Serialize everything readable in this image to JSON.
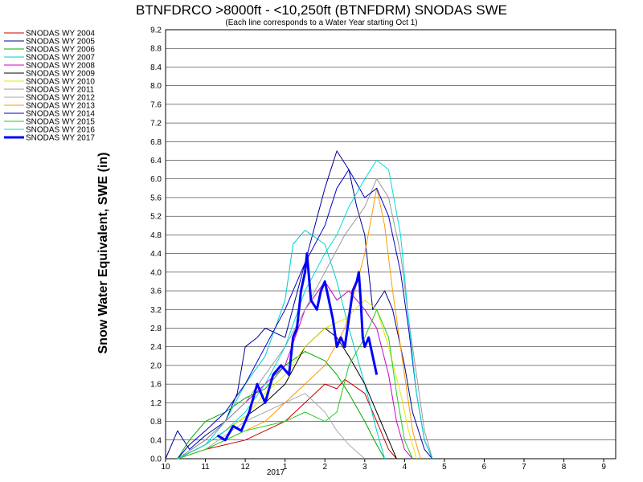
{
  "chart_data": {
    "type": "line",
    "title": "BTNFDRCO >8000ft - <10,250ft (BTNFDRM) SNODAS SWE",
    "subtitle": "(Each line corresponds to a Water Year starting Oct 1)",
    "ylabel": "Snow Water Equivalent, SWE (in)",
    "xlabel": "",
    "x_ticks": [
      "10",
      "11",
      "12",
      "1",
      "2",
      "3",
      "4",
      "5",
      "6",
      "7",
      "8",
      "9"
    ],
    "x_year_label": "2017",
    "x_month_index_range": [
      0,
      11.3
    ],
    "y_ticks": [
      "0.0",
      "0.4",
      "0.8",
      "1.2",
      "1.6",
      "2.0",
      "2.4",
      "2.8",
      "3.2",
      "3.6",
      "4.0",
      "4.4",
      "4.8",
      "5.2",
      "5.6",
      "6.0",
      "6.4",
      "6.8",
      "7.2",
      "7.6",
      "8.0",
      "8.4",
      "8.8",
      "9.2"
    ],
    "ylim": [
      0,
      9.2
    ],
    "grid": true,
    "legend_position": "top-left outside",
    "series": [
      {
        "name": "SNODAS WY 2004",
        "color": "#cc0000",
        "width": 1,
        "points": [
          [
            0.3,
            0
          ],
          [
            1,
            0.2
          ],
          [
            1.5,
            0.3
          ],
          [
            2,
            0.4
          ],
          [
            2.5,
            0.6
          ],
          [
            3,
            0.8
          ],
          [
            3.5,
            1.2
          ],
          [
            4,
            1.6
          ],
          [
            4.3,
            1.5
          ],
          [
            4.5,
            1.7
          ],
          [
            5,
            1.4
          ],
          [
            5.3,
            0.8
          ],
          [
            5.6,
            0.2
          ],
          [
            5.8,
            0
          ]
        ]
      },
      {
        "name": "SNODAS WY 2005",
        "color": "#000099",
        "width": 1,
        "points": [
          [
            0,
            0
          ],
          [
            0.3,
            0.6
          ],
          [
            0.6,
            0.2
          ],
          [
            1,
            0.5
          ],
          [
            1.5,
            0.8
          ],
          [
            1.8,
            1.4
          ],
          [
            2,
            2.4
          ],
          [
            2.3,
            2.6
          ],
          [
            2.5,
            2.8
          ],
          [
            3,
            2.6
          ],
          [
            3.5,
            4.2
          ],
          [
            4,
            5.8
          ],
          [
            4.3,
            6.6
          ],
          [
            4.6,
            6.2
          ],
          [
            4.8,
            5.4
          ],
          [
            5,
            4.8
          ],
          [
            5.2,
            3.2
          ],
          [
            5.5,
            3.6
          ],
          [
            5.7,
            3.2
          ],
          [
            6,
            2
          ],
          [
            6.2,
            1
          ],
          [
            6.5,
            0.2
          ],
          [
            6.7,
            0
          ]
        ]
      },
      {
        "name": "SNODAS WY 2006",
        "color": "#00aa00",
        "width": 1,
        "points": [
          [
            0.3,
            0
          ],
          [
            0.6,
            0.4
          ],
          [
            1,
            0.8
          ],
          [
            1.5,
            1.0
          ],
          [
            2,
            1.3
          ],
          [
            2.5,
            1.5
          ],
          [
            3,
            2.0
          ],
          [
            3.5,
            2.3
          ],
          [
            4,
            2.1
          ],
          [
            4.3,
            1.8
          ],
          [
            4.6,
            1.4
          ],
          [
            5,
            0.8
          ],
          [
            5.3,
            0.3
          ],
          [
            5.5,
            0
          ]
        ]
      },
      {
        "name": "SNODAS WY 2007",
        "color": "#00cccc",
        "width": 1,
        "points": [
          [
            0.3,
            0
          ],
          [
            1,
            0.3
          ],
          [
            1.5,
            0.8
          ],
          [
            2,
            1.6
          ],
          [
            2.5,
            2.2
          ],
          [
            3,
            3.4
          ],
          [
            3.2,
            4.6
          ],
          [
            3.5,
            4.9
          ],
          [
            4,
            4.6
          ],
          [
            4.3,
            3.8
          ],
          [
            4.6,
            2.8
          ],
          [
            5,
            1.6
          ],
          [
            5.3,
            0.6
          ],
          [
            5.5,
            0
          ]
        ]
      },
      {
        "name": "SNODAS WY 2008",
        "color": "#cc00cc",
        "width": 1,
        "points": [
          [
            0.3,
            0
          ],
          [
            1,
            0.4
          ],
          [
            1.5,
            0.8
          ],
          [
            2,
            1.2
          ],
          [
            2.5,
            1.6
          ],
          [
            3,
            2.0
          ],
          [
            3.5,
            3.2
          ],
          [
            4,
            3.8
          ],
          [
            4.3,
            3.4
          ],
          [
            4.6,
            3.6
          ],
          [
            5,
            3.2
          ],
          [
            5.3,
            2.8
          ],
          [
            5.6,
            1.8
          ],
          [
            5.8,
            0.8
          ],
          [
            6,
            0.2
          ],
          [
            6.2,
            0
          ]
        ]
      },
      {
        "name": "SNODAS WY 2009",
        "color": "#000000",
        "width": 1,
        "points": [
          [
            0.3,
            0
          ],
          [
            1,
            0.3
          ],
          [
            1.5,
            0.6
          ],
          [
            2,
            0.9
          ],
          [
            2.5,
            1.2
          ],
          [
            3,
            1.6
          ],
          [
            3.5,
            2.4
          ],
          [
            4,
            2.8
          ],
          [
            4.3,
            2.6
          ],
          [
            4.6,
            2.2
          ],
          [
            5,
            1.6
          ],
          [
            5.3,
            1.0
          ],
          [
            5.6,
            0.4
          ],
          [
            5.8,
            0
          ]
        ]
      },
      {
        "name": "SNODAS WY 2010",
        "color": "#e6e600",
        "width": 1,
        "points": [
          [
            0.3,
            0
          ],
          [
            1,
            0.3
          ],
          [
            1.5,
            0.6
          ],
          [
            2,
            0.9
          ],
          [
            2.5,
            1.4
          ],
          [
            3,
            1.8
          ],
          [
            3.5,
            2.4
          ],
          [
            4,
            2.8
          ],
          [
            4.5,
            3.0
          ],
          [
            5,
            3.4
          ],
          [
            5.3,
            3.2
          ],
          [
            5.6,
            2.4
          ],
          [
            5.9,
            1.4
          ],
          [
            6.1,
            0.6
          ],
          [
            6.3,
            0
          ]
        ]
      },
      {
        "name": "SNODAS WY 2011",
        "color": "#999999",
        "width": 1,
        "points": [
          [
            0.3,
            0
          ],
          [
            1,
            0.4
          ],
          [
            1.5,
            0.8
          ],
          [
            2,
            1.2
          ],
          [
            2.5,
            1.8
          ],
          [
            3,
            2.4
          ],
          [
            3.5,
            3.2
          ],
          [
            4,
            4.0
          ],
          [
            4.5,
            4.8
          ],
          [
            5,
            5.4
          ],
          [
            5.3,
            6.0
          ],
          [
            5.6,
            5.6
          ],
          [
            5.9,
            4.4
          ],
          [
            6.1,
            3.0
          ],
          [
            6.3,
            1.8
          ],
          [
            6.5,
            0.6
          ],
          [
            6.7,
            0
          ]
        ]
      },
      {
        "name": "SNODAS WY 2012",
        "color": "#aaaaaa",
        "width": 1,
        "points": [
          [
            0.3,
            0
          ],
          [
            1,
            0.2
          ],
          [
            1.5,
            0.5
          ],
          [
            2,
            0.8
          ],
          [
            2.5,
            1.0
          ],
          [
            3,
            1.2
          ],
          [
            3.5,
            1.4
          ],
          [
            4,
            1.0
          ],
          [
            4.3,
            0.6
          ],
          [
            4.6,
            0.3
          ],
          [
            5,
            0
          ]
        ]
      },
      {
        "name": "SNODAS WY 2013",
        "color": "#ff9900",
        "width": 1,
        "points": [
          [
            0.3,
            0
          ],
          [
            1,
            0.2
          ],
          [
            1.5,
            0.4
          ],
          [
            2,
            0.6
          ],
          [
            2.5,
            0.8
          ],
          [
            3,
            1.2
          ],
          [
            3.5,
            1.6
          ],
          [
            4,
            2.0
          ],
          [
            4.5,
            2.8
          ],
          [
            5,
            4.4
          ],
          [
            5.3,
            5.8
          ],
          [
            5.5,
            5.0
          ],
          [
            5.7,
            3.6
          ],
          [
            6,
            1.8
          ],
          [
            6.2,
            0.6
          ],
          [
            6.4,
            0
          ]
        ]
      },
      {
        "name": "SNODAS WY 2014",
        "color": "#0000cc",
        "width": 1,
        "points": [
          [
            0.3,
            0
          ],
          [
            0.6,
            0.3
          ],
          [
            1,
            0.6
          ],
          [
            1.5,
            1.0
          ],
          [
            2,
            1.6
          ],
          [
            2.5,
            2.4
          ],
          [
            3,
            3.2
          ],
          [
            3.5,
            4.2
          ],
          [
            4,
            5.0
          ],
          [
            4.3,
            5.8
          ],
          [
            4.6,
            6.2
          ],
          [
            5,
            5.6
          ],
          [
            5.3,
            5.8
          ],
          [
            5.6,
            5.2
          ],
          [
            5.9,
            4.0
          ],
          [
            6.1,
            2.8
          ],
          [
            6.3,
            1.4
          ],
          [
            6.5,
            0.4
          ],
          [
            6.7,
            0
          ]
        ]
      },
      {
        "name": "SNODAS WY 2015",
        "color": "#22cc22",
        "width": 1,
        "points": [
          [
            0.3,
            0
          ],
          [
            1,
            0.2
          ],
          [
            1.5,
            0.4
          ],
          [
            2,
            0.6
          ],
          [
            2.5,
            0.7
          ],
          [
            3,
            0.8
          ],
          [
            3.5,
            1.0
          ],
          [
            4,
            0.8
          ],
          [
            4.3,
            1.0
          ],
          [
            4.6,
            2.0
          ],
          [
            5,
            2.6
          ],
          [
            5.3,
            3.2
          ],
          [
            5.6,
            2.6
          ],
          [
            5.8,
            1.4
          ],
          [
            6,
            0.4
          ],
          [
            6.2,
            0
          ]
        ]
      },
      {
        "name": "SNODAS WY 2016",
        "color": "#00dddd",
        "width": 1,
        "points": [
          [
            0.3,
            0
          ],
          [
            1,
            0.3
          ],
          [
            1.5,
            0.6
          ],
          [
            2,
            1.0
          ],
          [
            2.5,
            1.6
          ],
          [
            3,
            2.4
          ],
          [
            3.5,
            3.6
          ],
          [
            4,
            4.4
          ],
          [
            4.3,
            4.8
          ],
          [
            4.6,
            5.4
          ],
          [
            5,
            6.0
          ],
          [
            5.3,
            6.4
          ],
          [
            5.6,
            6.2
          ],
          [
            5.9,
            4.8
          ],
          [
            6.1,
            3.0
          ],
          [
            6.3,
            1.4
          ],
          [
            6.5,
            0.4
          ],
          [
            6.7,
            0
          ]
        ]
      },
      {
        "name": "SNODAS WY 2017",
        "color": "#0000ff",
        "width": 3,
        "points": [
          [
            1.3,
            0.5
          ],
          [
            1.5,
            0.4
          ],
          [
            1.7,
            0.7
          ],
          [
            1.9,
            0.6
          ],
          [
            2.1,
            1.0
          ],
          [
            2.3,
            1.6
          ],
          [
            2.5,
            1.2
          ],
          [
            2.7,
            1.8
          ],
          [
            2.9,
            2.0
          ],
          [
            3.1,
            1.8
          ],
          [
            3.2,
            2.6
          ],
          [
            3.3,
            2.8
          ],
          [
            3.4,
            3.6
          ],
          [
            3.5,
            4.0
          ],
          [
            3.55,
            4.4
          ],
          [
            3.65,
            3.4
          ],
          [
            3.8,
            3.2
          ],
          [
            3.9,
            3.6
          ],
          [
            4.0,
            3.8
          ],
          [
            4.1,
            3.4
          ],
          [
            4.2,
            3.0
          ],
          [
            4.3,
            2.4
          ],
          [
            4.4,
            2.6
          ],
          [
            4.5,
            2.4
          ],
          [
            4.6,
            3.0
          ],
          [
            4.7,
            3.6
          ],
          [
            4.8,
            3.8
          ],
          [
            4.85,
            4.0
          ],
          [
            4.9,
            3.4
          ],
          [
            4.95,
            2.6
          ],
          [
            5.0,
            2.4
          ],
          [
            5.1,
            2.6
          ],
          [
            5.2,
            2.2
          ],
          [
            5.3,
            1.8
          ]
        ]
      }
    ]
  }
}
